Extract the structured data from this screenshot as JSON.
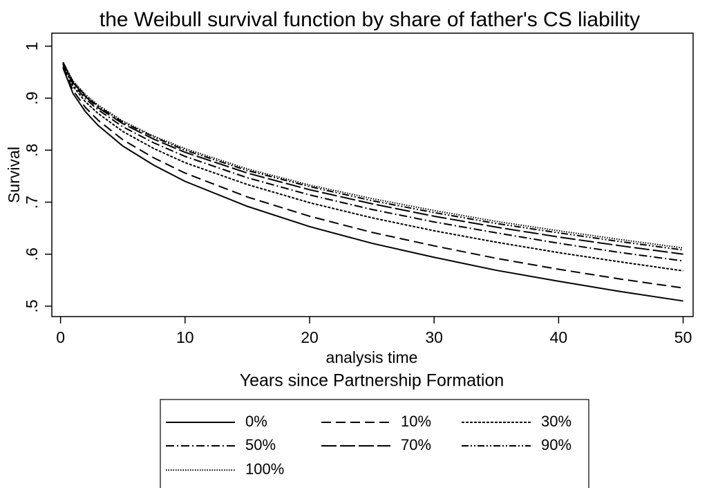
{
  "chart_data": {
    "type": "line",
    "title": "the Weibull survival function by share of father's CS liability",
    "x_label": "analysis time",
    "note": "Years since Partnership Formation",
    "y_label": "Survival",
    "x": [
      0.2,
      1,
      2,
      3,
      5,
      7.5,
      10,
      15,
      20,
      25,
      30,
      35,
      40,
      45,
      50
    ],
    "series": [
      {
        "name": "0%",
        "color": "#000000",
        "dash": "none",
        "values": [
          0.958,
          0.909,
          0.874,
          0.848,
          0.808,
          0.771,
          0.74,
          0.692,
          0.653,
          0.621,
          0.594,
          0.569,
          0.548,
          0.528,
          0.51
        ]
      },
      {
        "name": "10%",
        "color": "#000000",
        "dash": "14,7",
        "values": [
          0.961,
          0.915,
          0.882,
          0.858,
          0.82,
          0.785,
          0.756,
          0.71,
          0.673,
          0.642,
          0.616,
          0.592,
          0.571,
          0.552,
          0.535
        ]
      },
      {
        "name": "30%",
        "color": "#000000",
        "dash": "4,2",
        "values": [
          0.965,
          0.923,
          0.893,
          0.871,
          0.836,
          0.803,
          0.776,
          0.734,
          0.699,
          0.67,
          0.645,
          0.623,
          0.603,
          0.585,
          0.568
        ]
      },
      {
        "name": "50%",
        "color": "#000000",
        "dash": "12,4,2,4",
        "values": [
          0.967,
          0.927,
          0.899,
          0.878,
          0.845,
          0.814,
          0.788,
          0.747,
          0.714,
          0.686,
          0.662,
          0.641,
          0.621,
          0.603,
          0.587
        ]
      },
      {
        "name": "70%",
        "color": "#000000",
        "dash": "22,5",
        "values": [
          0.968,
          0.93,
          0.903,
          0.882,
          0.851,
          0.821,
          0.796,
          0.756,
          0.724,
          0.697,
          0.673,
          0.652,
          0.633,
          0.616,
          0.6
        ]
      },
      {
        "name": "90%",
        "color": "#000000",
        "dash": "10,3,2,3,2,3",
        "values": [
          0.969,
          0.932,
          0.905,
          0.885,
          0.854,
          0.825,
          0.8,
          0.761,
          0.73,
          0.703,
          0.68,
          0.659,
          0.641,
          0.624,
          0.608
        ]
      },
      {
        "name": "100%",
        "color": "#000000",
        "dash": "1.5,2",
        "values": [
          0.969,
          0.933,
          0.907,
          0.887,
          0.856,
          0.827,
          0.803,
          0.764,
          0.733,
          0.707,
          0.684,
          0.663,
          0.645,
          0.628,
          0.612
        ]
      }
    ],
    "xlim": [
      -0.7,
      50.8
    ],
    "ylim": [
      0.48,
      1.025
    ],
    "xticks": [
      0,
      10,
      20,
      30,
      40,
      50
    ],
    "yticks": [
      {
        "value": 0.5,
        "label": ".5"
      },
      {
        "value": 0.6,
        "label": ".6"
      },
      {
        "value": 0.7,
        "label": ".7"
      },
      {
        "value": 0.8,
        "label": ".8"
      },
      {
        "value": 0.9,
        "label": ".9"
      },
      1
    ],
    "grid": false,
    "legend": "bottom"
  }
}
